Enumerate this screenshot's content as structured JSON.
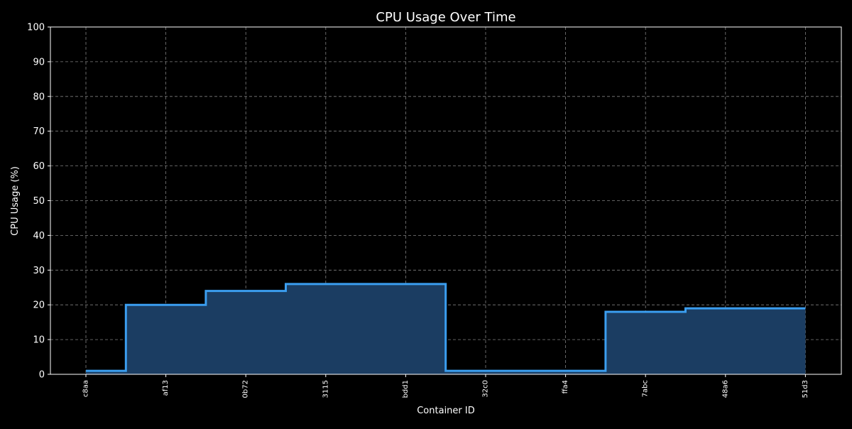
{
  "chart_data": {
    "type": "line",
    "step": "mid",
    "fill_under": true,
    "title": "CPU Usage Over Time",
    "xlabel": "Container ID",
    "ylabel": "CPU Usage (%)",
    "categories": [
      "c8aa",
      "af13",
      "0b72",
      "3115",
      "bdd1",
      "32c0",
      "ffa4",
      "7abc",
      "48a6",
      "51d3"
    ],
    "series": [
      {
        "values": [
          1,
          20,
          24,
          26,
          26,
          1,
          1,
          18,
          19,
          19
        ]
      }
    ],
    "ylim": [
      0,
      100
    ],
    "yticks": [
      0,
      10,
      20,
      30,
      40,
      50,
      60,
      70,
      80,
      90,
      100
    ],
    "grid": true,
    "legend": false
  },
  "colors": {
    "background": "#000000",
    "axes_edge": "#ffffff",
    "text": "#ffffff",
    "grid": "#808080",
    "line": "#3b9ef0",
    "fill": "#1b3d62"
  }
}
